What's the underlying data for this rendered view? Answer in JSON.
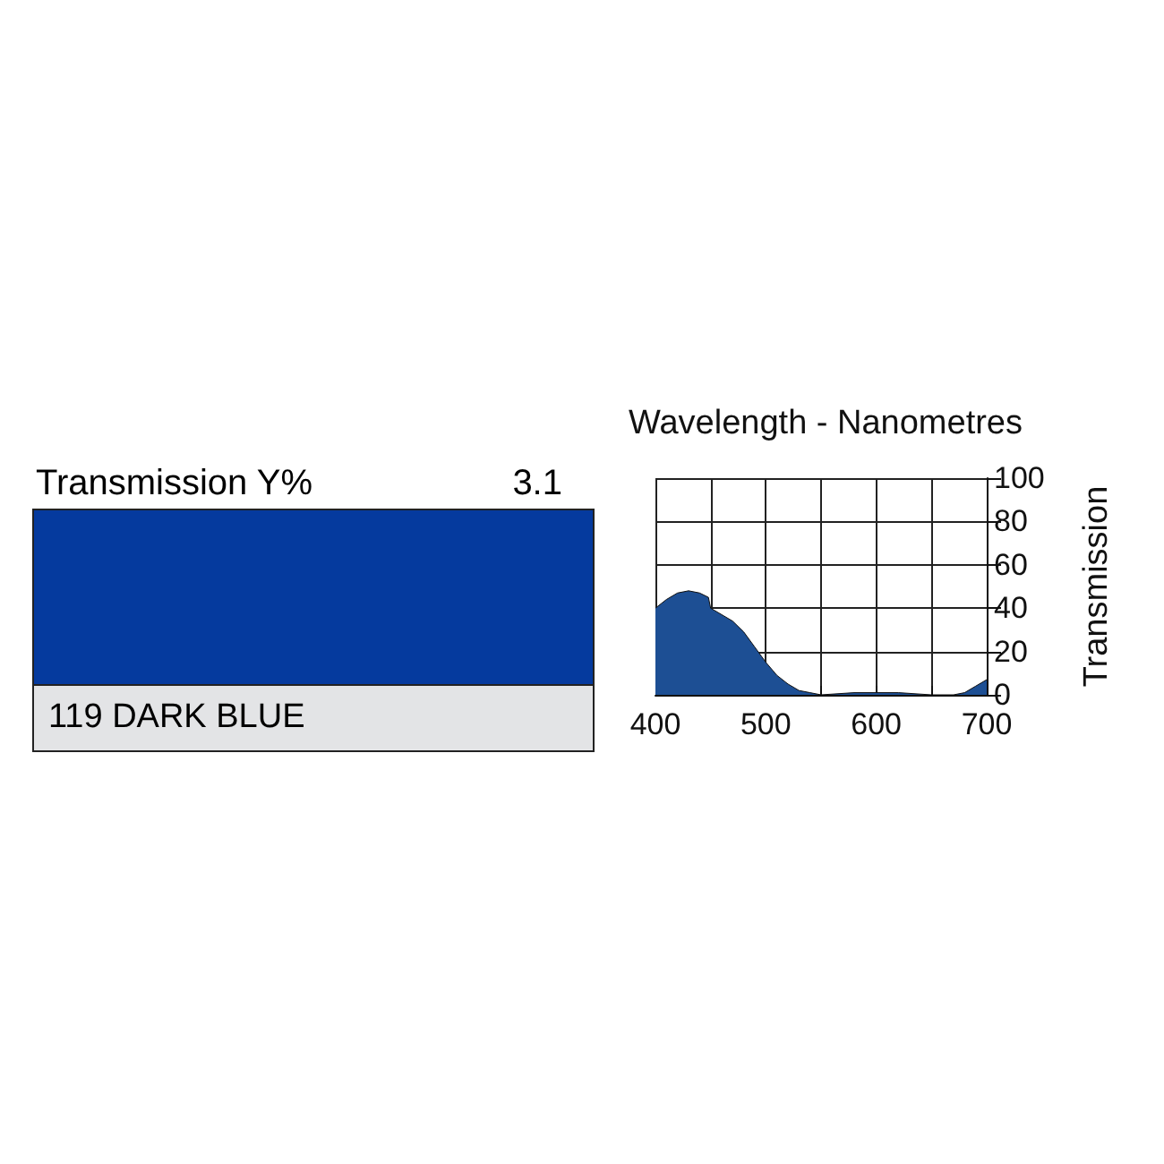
{
  "chart_data": [
    {
      "type": "other",
      "title": "Transmission Y%",
      "annotations": [
        "3.1",
        "119 DARK BLUE"
      ],
      "color": "#053a9e"
    },
    {
      "type": "area",
      "xlabel": "Wavelength - Nanometres",
      "ylabel": "Transmission",
      "x": [
        400,
        410,
        420,
        430,
        440,
        448,
        450,
        460,
        470,
        480,
        490,
        500,
        510,
        520,
        530,
        540,
        550,
        580,
        600,
        620,
        650,
        670,
        680,
        690,
        700
      ],
      "series": [
        {
          "color": "#1d4f94",
          "values": [
            40,
            44,
            47,
            48,
            47,
            45,
            40,
            37,
            34,
            29,
            22,
            15,
            9,
            5,
            2,
            1,
            0,
            1,
            1,
            1,
            0,
            0,
            1,
            4,
            7
          ]
        }
      ],
      "xlim": [
        400,
        700
      ],
      "xticks": [
        400,
        {
          "value": 450,
          "label": null
        },
        500,
        {
          "value": 550,
          "label": null
        },
        600,
        {
          "value": 650,
          "label": null
        },
        700
      ],
      "ylim": [
        0,
        100
      ],
      "yticks": [
        0,
        20,
        40,
        60,
        80,
        100
      ],
      "grid": true
    }
  ]
}
